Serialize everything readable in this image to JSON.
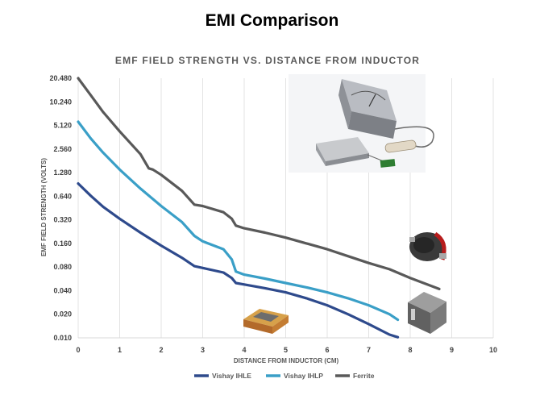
{
  "slide": {
    "title": "EMI Comparison"
  },
  "chart_data": {
    "type": "line",
    "title": "EMF FIELD STRENGTH  VS.  DISTANCE  FROM  INDUCTOR",
    "xlabel": "DISTANCE FROM INDUCTOR (CM)",
    "ylabel": "EMF FIELD STRENGTH (VOLTS)",
    "xlim": [
      0,
      10
    ],
    "ylim": [
      0.01,
      20.48
    ],
    "yscale": "log2",
    "x_ticks": [
      "0",
      "1",
      "2",
      "3",
      "4",
      "5",
      "6",
      "7",
      "8",
      "9",
      "10"
    ],
    "y_ticks": [
      "0.010",
      "0.020",
      "0.040",
      "0.080",
      "0.160",
      "0.320",
      "0.640",
      "1.280",
      "2.560",
      "5.120",
      "10.240",
      "20.480"
    ],
    "x_tick_values": [
      0,
      1,
      2,
      3,
      4,
      5,
      6,
      7,
      8,
      9,
      10
    ],
    "y_tick_values": [
      0.01,
      0.02,
      0.04,
      0.08,
      0.16,
      0.32,
      0.64,
      1.28,
      2.56,
      5.12,
      10.24,
      20.48
    ],
    "grid": {
      "x": true,
      "y": false
    },
    "legend_position": "bottom",
    "series": [
      {
        "name": "Vishay IHLE",
        "color": "#2e4a8c",
        "x": [
          0,
          0.3,
          0.6,
          1.0,
          1.5,
          2.0,
          2.5,
          2.8,
          3.0,
          3.5,
          3.7,
          3.8,
          4.0,
          4.5,
          5.0,
          5.5,
          6.0,
          6.5,
          7.0,
          7.5,
          7.7
        ],
        "y": [
          0.93,
          0.65,
          0.47,
          0.33,
          0.22,
          0.15,
          0.105,
          0.082,
          0.078,
          0.068,
          0.058,
          0.05,
          0.048,
          0.043,
          0.038,
          0.032,
          0.026,
          0.02,
          0.015,
          0.011,
          0.0102
        ]
      },
      {
        "name": "Vishay IHLP",
        "color": "#3a9fc7",
        "x": [
          0,
          0.3,
          0.6,
          1.0,
          1.5,
          2.0,
          2.5,
          2.8,
          3.0,
          3.5,
          3.7,
          3.8,
          4.0,
          4.5,
          5.0,
          5.5,
          6.0,
          6.5,
          7.0,
          7.5,
          7.7
        ],
        "y": [
          5.7,
          3.5,
          2.3,
          1.4,
          0.8,
          0.48,
          0.3,
          0.2,
          0.17,
          0.135,
          0.1,
          0.07,
          0.064,
          0.057,
          0.05,
          0.044,
          0.038,
          0.032,
          0.026,
          0.02,
          0.017
        ]
      },
      {
        "name": "Ferrite",
        "color": "#595959",
        "x": [
          0,
          0.3,
          0.6,
          1.0,
          1.5,
          1.7,
          1.8,
          2.0,
          2.5,
          2.8,
          3.0,
          3.5,
          3.7,
          3.8,
          4.0,
          4.5,
          5.0,
          5.5,
          6.0,
          6.5,
          7.0,
          7.5,
          8.0,
          8.7
        ],
        "y": [
          20.5,
          12.5,
          7.6,
          4.3,
          2.2,
          1.45,
          1.4,
          1.2,
          0.75,
          0.5,
          0.48,
          0.4,
          0.33,
          0.27,
          0.25,
          0.22,
          0.19,
          0.16,
          0.135,
          0.11,
          0.09,
          0.075,
          0.058,
          0.042
        ]
      }
    ]
  },
  "images": {
    "meter_setup": "emf-meter-photo",
    "inductor_round": "round-inductor-photo",
    "inductor_square": "square-inductor-photo",
    "inductor_flat": "flat-inductor-photo"
  }
}
